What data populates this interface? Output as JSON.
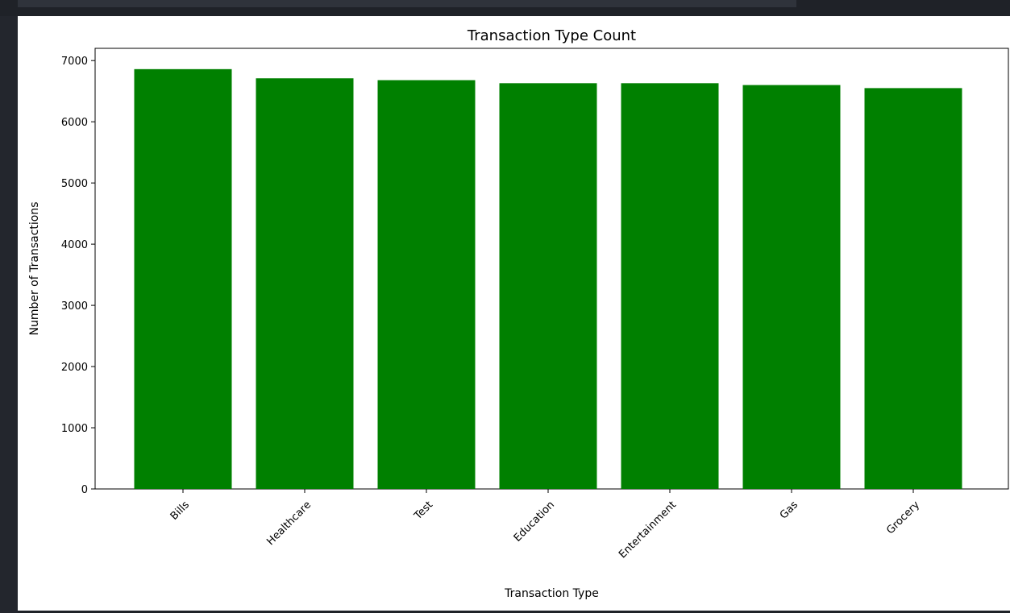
{
  "chart_data": {
    "type": "bar",
    "title": "Transaction Type Count",
    "xlabel": "Transaction Type",
    "ylabel": "Number of Transactions",
    "categories": [
      "Bills",
      "Healthcare",
      "Test",
      "Education",
      "Entertainment",
      "Gas",
      "Grocery"
    ],
    "values": [
      6860,
      6710,
      6680,
      6630,
      6630,
      6600,
      6550
    ],
    "ylim": [
      0,
      7200
    ],
    "yticks": [
      0,
      1000,
      2000,
      3000,
      4000,
      5000,
      6000,
      7000
    ],
    "ytick_labels": [
      "0",
      "1000",
      "2000",
      "3000",
      "4000",
      "5000",
      "6000",
      "7000"
    ],
    "bar_color": "#008000",
    "grid": false,
    "xtick_rotation_deg": 45
  },
  "theme": {
    "background": "#1f2228",
    "plot_background": "#ffffff"
  }
}
